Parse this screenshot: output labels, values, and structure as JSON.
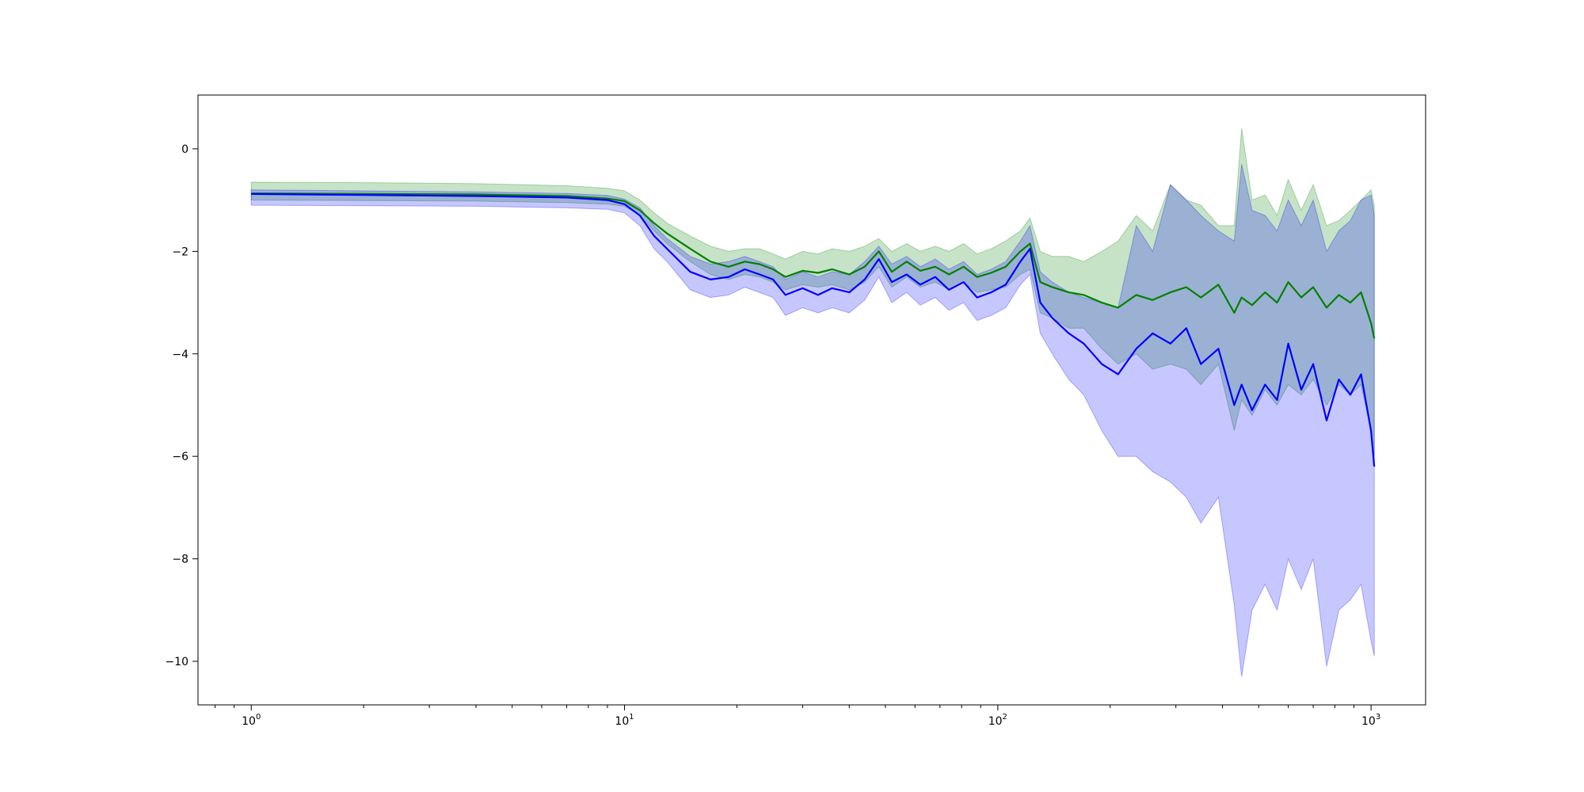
{
  "chart_data": {
    "type": "line",
    "title": "",
    "xlabel": "",
    "ylabel": "",
    "xscale": "log",
    "xlim": [
      0.72,
      1400
    ],
    "ylim": [
      -10.85,
      1.05
    ],
    "grid": false,
    "legend": "none",
    "x_ticks": [
      {
        "value": 1,
        "base": "10",
        "exp": "0"
      },
      {
        "value": 10,
        "base": "10",
        "exp": "1"
      },
      {
        "value": 100,
        "base": "10",
        "exp": "2"
      },
      {
        "value": 1000,
        "base": "10",
        "exp": "3"
      }
    ],
    "y_ticks": [
      {
        "value": 0,
        "label": "0"
      },
      {
        "value": -2,
        "label": "−2"
      },
      {
        "value": -4,
        "label": "−4"
      },
      {
        "value": -6,
        "label": "−6"
      },
      {
        "value": -8,
        "label": "−8"
      },
      {
        "value": -10,
        "label": "−10"
      }
    ],
    "x": [
      1,
      2,
      4,
      7,
      9,
      10,
      11,
      12,
      13,
      15,
      17,
      19,
      21,
      23,
      25,
      27,
      30,
      33,
      36,
      40,
      44,
      48,
      52,
      57,
      62,
      68,
      74,
      81,
      88,
      96,
      105,
      115,
      122,
      130,
      140,
      155,
      170,
      190,
      210,
      235,
      260,
      290,
      320,
      350,
      390,
      430,
      450,
      480,
      520,
      560,
      600,
      650,
      700,
      760,
      820,
      880,
      940,
      1000,
      1020
    ],
    "series": [
      {
        "color": "#008000",
        "band_color": "#008000",
        "band_opacity": 0.22,
        "values": [
          -0.87,
          -0.88,
          -0.89,
          -0.92,
          -0.97,
          -1.02,
          -1.2,
          -1.45,
          -1.65,
          -1.95,
          -2.2,
          -2.3,
          -2.2,
          -2.25,
          -2.35,
          -2.5,
          -2.38,
          -2.42,
          -2.35,
          -2.45,
          -2.3,
          -2.0,
          -2.4,
          -2.2,
          -2.38,
          -2.3,
          -2.45,
          -2.3,
          -2.5,
          -2.42,
          -2.3,
          -2.0,
          -1.85,
          -2.6,
          -2.7,
          -2.8,
          -2.85,
          -3.0,
          -3.1,
          -2.85,
          -2.95,
          -2.8,
          -2.7,
          -2.9,
          -2.65,
          -3.2,
          -2.9,
          -3.05,
          -2.8,
          -3.0,
          -2.6,
          -2.9,
          -2.7,
          -3.1,
          -2.85,
          -3.0,
          -2.8,
          -3.4,
          -3.7
        ],
        "upper": [
          -0.65,
          -0.66,
          -0.68,
          -0.72,
          -0.77,
          -0.82,
          -1.0,
          -1.25,
          -1.45,
          -1.7,
          -1.9,
          -2.0,
          -1.95,
          -1.95,
          -2.05,
          -2.15,
          -2.0,
          -2.05,
          -1.95,
          -2.0,
          -1.9,
          -1.75,
          -2.0,
          -1.85,
          -2.0,
          -1.9,
          -2.0,
          -1.85,
          -2.05,
          -1.95,
          -1.8,
          -1.6,
          -1.35,
          -2.0,
          -2.1,
          -2.1,
          -2.2,
          -2.0,
          -1.8,
          -1.3,
          -1.6,
          -0.7,
          -1.0,
          -1.1,
          -1.5,
          -1.5,
          0.4,
          -1.0,
          -0.9,
          -1.3,
          -0.6,
          -1.2,
          -0.7,
          -1.5,
          -1.4,
          -1.2,
          -1.0,
          -0.8,
          -1.1
        ],
        "lower": [
          -1.0,
          -1.01,
          -1.02,
          -1.05,
          -1.08,
          -1.12,
          -1.3,
          -1.6,
          -1.85,
          -2.2,
          -2.45,
          -2.55,
          -2.45,
          -2.5,
          -2.6,
          -2.75,
          -2.65,
          -2.7,
          -2.65,
          -2.75,
          -2.6,
          -2.3,
          -2.7,
          -2.5,
          -2.7,
          -2.6,
          -2.75,
          -2.6,
          -2.8,
          -2.75,
          -2.7,
          -2.45,
          -2.35,
          -3.2,
          -3.3,
          -3.5,
          -3.5,
          -3.9,
          -4.2,
          -4.0,
          -4.3,
          -4.2,
          -4.3,
          -4.6,
          -4.2,
          -5.5,
          -4.9,
          -5.2,
          -4.7,
          -5.0,
          -4.6,
          -4.8,
          -4.5,
          -5.0,
          -4.6,
          -4.8,
          -4.6,
          -5.5,
          -6.0
        ]
      },
      {
        "color": "#0000ff",
        "band_color": "#0000ff",
        "band_opacity": 0.22,
        "values": [
          -0.88,
          -0.9,
          -0.92,
          -0.95,
          -1.0,
          -1.08,
          -1.3,
          -1.7,
          -1.95,
          -2.4,
          -2.55,
          -2.5,
          -2.35,
          -2.45,
          -2.55,
          -2.85,
          -2.72,
          -2.85,
          -2.72,
          -2.8,
          -2.55,
          -2.15,
          -2.6,
          -2.45,
          -2.65,
          -2.5,
          -2.75,
          -2.6,
          -2.9,
          -2.8,
          -2.65,
          -2.2,
          -1.95,
          -3.0,
          -3.3,
          -3.6,
          -3.8,
          -4.2,
          -4.4,
          -3.9,
          -3.6,
          -3.8,
          -3.5,
          -4.2,
          -3.9,
          -5.0,
          -4.6,
          -5.1,
          -4.6,
          -4.9,
          -3.8,
          -4.7,
          -4.2,
          -5.3,
          -4.5,
          -4.8,
          -4.4,
          -5.5,
          -6.2
        ],
        "upper": [
          -0.8,
          -0.82,
          -0.84,
          -0.87,
          -0.91,
          -0.98,
          -1.15,
          -1.5,
          -1.75,
          -2.1,
          -2.25,
          -2.2,
          -2.1,
          -2.2,
          -2.3,
          -2.55,
          -2.4,
          -2.5,
          -2.4,
          -2.45,
          -2.2,
          -1.9,
          -2.25,
          -2.1,
          -2.3,
          -2.15,
          -2.35,
          -2.2,
          -2.45,
          -2.35,
          -2.2,
          -1.8,
          -1.5,
          -2.4,
          -2.6,
          -2.8,
          -2.9,
          -3.0,
          -3.1,
          -1.5,
          -2.0,
          -0.7,
          -1.0,
          -1.3,
          -1.6,
          -1.8,
          -0.3,
          -1.2,
          -1.3,
          -1.6,
          -1.0,
          -1.5,
          -1.0,
          -2.0,
          -1.6,
          -1.4,
          -1.0,
          -0.9,
          -1.3
        ],
        "lower": [
          -1.1,
          -1.11,
          -1.12,
          -1.15,
          -1.18,
          -1.25,
          -1.5,
          -1.95,
          -2.2,
          -2.75,
          -2.9,
          -2.85,
          -2.7,
          -2.8,
          -2.9,
          -3.25,
          -3.1,
          -3.2,
          -3.1,
          -3.2,
          -2.95,
          -2.5,
          -3.0,
          -2.8,
          -3.05,
          -2.9,
          -3.15,
          -3.0,
          -3.35,
          -3.25,
          -3.1,
          -2.65,
          -2.45,
          -3.6,
          -4.0,
          -4.5,
          -4.8,
          -5.5,
          -6.0,
          -6.0,
          -6.3,
          -6.5,
          -6.8,
          -7.3,
          -6.8,
          -8.9,
          -10.3,
          -9.0,
          -8.5,
          -9.0,
          -8.0,
          -8.6,
          -8.0,
          -10.1,
          -9.0,
          -8.8,
          -8.5,
          -9.6,
          -9.9
        ]
      }
    ]
  }
}
